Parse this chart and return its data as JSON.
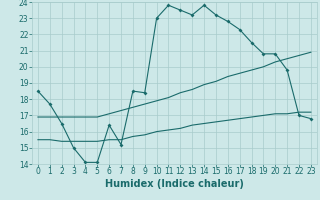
{
  "xlabel": "Humidex (Indice chaleur)",
  "xlim": [
    -0.5,
    23.5
  ],
  "ylim": [
    14,
    24
  ],
  "xticks": [
    0,
    1,
    2,
    3,
    4,
    5,
    6,
    7,
    8,
    9,
    10,
    11,
    12,
    13,
    14,
    15,
    16,
    17,
    18,
    19,
    20,
    21,
    22,
    23
  ],
  "yticks": [
    14,
    15,
    16,
    17,
    18,
    19,
    20,
    21,
    22,
    23,
    24
  ],
  "background_color": "#cde8e8",
  "grid_color": "#a8cccc",
  "line_color": "#1a6b6b",
  "line1_x": [
    0,
    1,
    2,
    3,
    4,
    5,
    6,
    7,
    8,
    9,
    10,
    11,
    12,
    13,
    14,
    15,
    16,
    17,
    18,
    19,
    20,
    21,
    22,
    23
  ],
  "line1_y": [
    18.5,
    17.7,
    16.5,
    15.0,
    14.1,
    14.1,
    16.4,
    15.2,
    18.5,
    18.4,
    23.0,
    23.8,
    23.5,
    23.2,
    23.8,
    23.2,
    22.8,
    22.3,
    21.5,
    20.8,
    20.8,
    19.8,
    17.0,
    16.8
  ],
  "line2_x": [
    0,
    1,
    2,
    3,
    4,
    5,
    6,
    7,
    8,
    9,
    10,
    11,
    12,
    13,
    14,
    15,
    16,
    17,
    18,
    19,
    20,
    21,
    22,
    23
  ],
  "line2_y": [
    16.9,
    16.9,
    16.9,
    16.9,
    16.9,
    16.9,
    17.1,
    17.3,
    17.5,
    17.7,
    17.9,
    18.1,
    18.4,
    18.6,
    18.9,
    19.1,
    19.4,
    19.6,
    19.8,
    20.0,
    20.3,
    20.5,
    20.7,
    20.9
  ],
  "line3_x": [
    0,
    1,
    2,
    3,
    4,
    5,
    6,
    7,
    8,
    9,
    10,
    11,
    12,
    13,
    14,
    15,
    16,
    17,
    18,
    19,
    20,
    21,
    22,
    23
  ],
  "line3_y": [
    15.5,
    15.5,
    15.4,
    15.4,
    15.4,
    15.4,
    15.5,
    15.5,
    15.7,
    15.8,
    16.0,
    16.1,
    16.2,
    16.4,
    16.5,
    16.6,
    16.7,
    16.8,
    16.9,
    17.0,
    17.1,
    17.1,
    17.2,
    17.2
  ],
  "tick_fontsize": 5.5,
  "xlabel_fontsize": 7
}
